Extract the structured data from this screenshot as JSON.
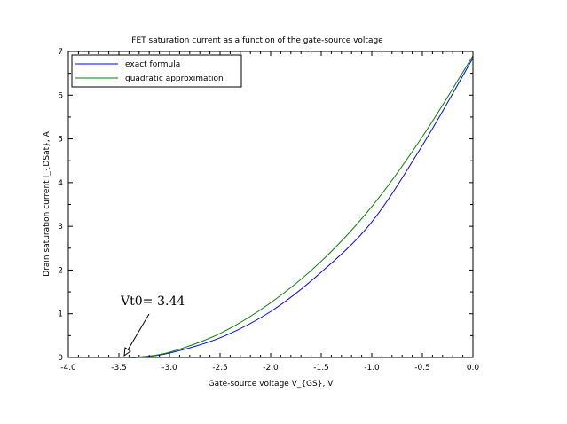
{
  "chart_data": {
    "type": "line",
    "title": "FET saturation current as a function of the gate-source voltage",
    "xlabel": "Gate-source voltage V_{GS}, V",
    "ylabel": "Drain saturation current I_{DSat}, A",
    "xlim": [
      -4.0,
      0.0
    ],
    "ylim": [
      0,
      7
    ],
    "xticks": [
      "-4.0",
      "-3.5",
      "-3.0",
      "-2.5",
      "-2.0",
      "-1.5",
      "-1.0",
      "-0.5",
      "0.0"
    ],
    "yticks": [
      "0",
      "1",
      "2",
      "3",
      "4",
      "5",
      "6",
      "7"
    ],
    "grid": false,
    "legend_position": "top-left",
    "x": [
      -4.0,
      -3.44,
      -3.3,
      -3.0,
      -2.5,
      -2.0,
      -1.5,
      -1.0,
      -0.5,
      0.0
    ],
    "series": [
      {
        "name": "exact formula",
        "color": "#0000ff",
        "values": [
          0,
          0,
          0.003,
          0.1,
          0.45,
          1.05,
          1.95,
          3.1,
          4.85,
          6.85
        ]
      },
      {
        "name": "quadratic approximation",
        "color": "#008000",
        "values": [
          0,
          0,
          0.01,
          0.12,
          0.55,
          1.25,
          2.2,
          3.45,
          5.05,
          6.9
        ]
      }
    ],
    "annotations": [
      {
        "text": "Vt0=-3.44",
        "x": -3.44,
        "y": 0
      }
    ]
  }
}
